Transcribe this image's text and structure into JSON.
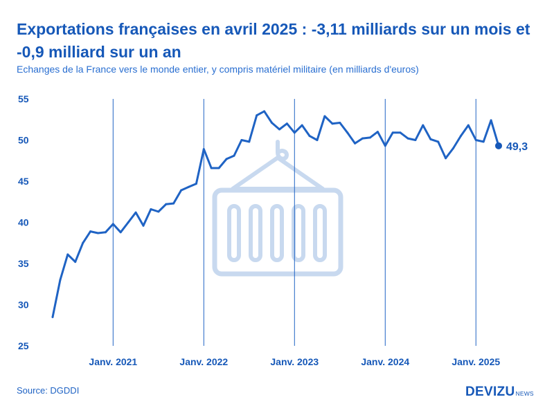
{
  "header": {
    "title": "Exportations françaises en avril 2025 : -3,11 milliards sur un mois et -0,9 milliard sur un an",
    "subtitle": "Echanges de la France vers le monde entier, y compris matériel militaire (en milliards d'euros)"
  },
  "footer": {
    "source": "Source: DGDDI",
    "logo_main": "DEVIZU",
    "logo_sub": "NEWS"
  },
  "colors": {
    "accent": "#1658b8",
    "line": "#1f63c4",
    "icon": "#c8d9ef"
  },
  "watermark_icon": "container-hook-icon",
  "chart_data": {
    "type": "line",
    "title": "",
    "xlabel": "",
    "ylabel": "",
    "ylim": [
      25,
      55
    ],
    "yticks": [
      25,
      30,
      35,
      40,
      45,
      50,
      55
    ],
    "grid": false,
    "x_range": [
      "2020-05",
      "2025-04"
    ],
    "xtick_labels": [
      {
        "label": "Janv. 2021",
        "month": "2021-01"
      },
      {
        "label": "Janv. 2022",
        "month": "2022-01"
      },
      {
        "label": "Janv. 2023",
        "month": "2023-01"
      },
      {
        "label": "Janv. 2024",
        "month": "2024-01"
      },
      {
        "label": "Janv. 2025",
        "month": "2025-01"
      }
    ],
    "series": [
      {
        "name": "",
        "x": [
          "2020-05",
          "2020-06",
          "2020-07",
          "2020-08",
          "2020-09",
          "2020-10",
          "2020-11",
          "2020-12",
          "2021-01",
          "2021-02",
          "2021-03",
          "2021-04",
          "2021-05",
          "2021-06",
          "2021-07",
          "2021-08",
          "2021-09",
          "2021-10",
          "2021-11",
          "2021-12",
          "2022-01",
          "2022-02",
          "2022-03",
          "2022-04",
          "2022-05",
          "2022-06",
          "2022-07",
          "2022-08",
          "2022-09",
          "2022-10",
          "2022-11",
          "2022-12",
          "2023-01",
          "2023-02",
          "2023-03",
          "2023-04",
          "2023-05",
          "2023-06",
          "2023-07",
          "2023-08",
          "2023-09",
          "2023-10",
          "2023-11",
          "2023-12",
          "2024-01",
          "2024-02",
          "2024-03",
          "2024-04",
          "2024-05",
          "2024-06",
          "2024-07",
          "2024-08",
          "2024-09",
          "2024-10",
          "2024-11",
          "2024-12",
          "2025-01",
          "2025-02",
          "2025-03",
          "2025-04"
        ],
        "values": [
          28.5,
          33.0,
          36.1,
          35.2,
          37.5,
          38.9,
          38.7,
          38.8,
          39.8,
          38.8,
          40.0,
          41.2,
          39.6,
          41.6,
          41.3,
          42.2,
          42.3,
          43.9,
          44.3,
          44.7,
          48.9,
          46.6,
          46.6,
          47.7,
          48.1,
          50.0,
          49.8,
          53.0,
          53.5,
          52.1,
          51.3,
          52.0,
          50.9,
          51.8,
          50.5,
          50.0,
          52.9,
          52.0,
          52.1,
          50.9,
          49.6,
          50.2,
          50.3,
          51.0,
          49.3,
          50.9,
          50.9,
          50.2,
          50.0,
          51.8,
          50.1,
          49.8,
          47.8,
          49.0,
          50.5,
          51.8,
          50.0,
          49.8,
          52.4,
          49.3
        ]
      }
    ],
    "annotations": [
      {
        "month": "2025-04",
        "value": 49.3,
        "label": "49,3"
      }
    ]
  }
}
